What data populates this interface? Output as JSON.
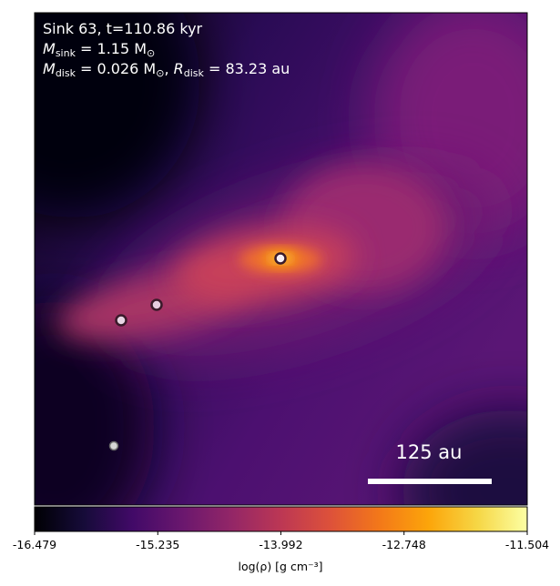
{
  "chart_data": {
    "type": "heatmap",
    "annotation": {
      "line1": "Sink 63, t=110.86 kyr",
      "line2_prefix": "M",
      "line2_sub": "sink",
      "line2_rest": " = 1.15 M",
      "line2_unit_sub": "⊙",
      "line3_prefix": "M",
      "line3_sub": "disk",
      "line3_mid": " = 0.026 M",
      "line3_unit_sub": "⊙",
      "line3_sep": ", ",
      "line3_r": "R",
      "line3_r_sub": "disk",
      "line3_rest": " = 83.23 au"
    },
    "scale_bar": {
      "label": "125 au",
      "length_au": 125
    },
    "colorbar": {
      "cmap": "inferno-like",
      "vmin": -16.479,
      "vmax": -11.504,
      "ticks": [
        "-16.479",
        "-15.235",
        "-13.992",
        "-12.748",
        "-11.504"
      ],
      "label": "log(ρ) [g cm⁻³]"
    },
    "sinks": [
      {
        "id": "primary",
        "fill": "#f7f0f5",
        "edge": "#3a1a2a"
      },
      {
        "id": "sink-b",
        "fill": "#e6cde0",
        "edge": "#3a1a2a"
      },
      {
        "id": "sink-c",
        "fill": "#e8d6e4",
        "edge": "#3a1a2a"
      },
      {
        "id": "sink-d",
        "fill": "#d6d6d6",
        "edge": "#6a6a6a"
      }
    ],
    "colors": {
      "dark": "#000004",
      "purple": "#3b0f70",
      "magenta": "#8c2981",
      "pink": "#de4968",
      "orange": "#fe9f6d",
      "yellow": "#fcfdbf"
    }
  }
}
